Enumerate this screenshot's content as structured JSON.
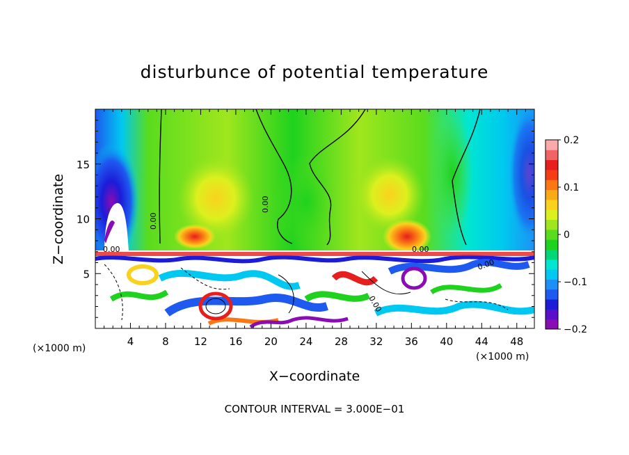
{
  "chart_data": {
    "type": "heatmap",
    "title": "disturbunce of potential temperature",
    "xlabel": "X−coordinate",
    "ylabel": "Z−coordinate",
    "x_unit_left": "(×1000 m)",
    "x_unit_right": "(×1000 m)",
    "footer": "CONTOUR INTERVAL = 3.000E−01",
    "xlim": [
      0,
      50
    ],
    "ylim": [
      0,
      20
    ],
    "x_ticks": [
      4,
      8,
      12,
      16,
      20,
      24,
      28,
      32,
      36,
      40,
      44,
      48
    ],
    "y_ticks": [
      5,
      10,
      15
    ],
    "colorbar": {
      "min": -0.2,
      "max": 0.2,
      "ticks": [
        0.2,
        0.1,
        0,
        -0.1,
        -0.2
      ],
      "tick_labels": [
        "0.2",
        "0.1",
        "0",
        "−0.1",
        "−0.2"
      ],
      "colors": [
        "#8a0cb4",
        "#5a0fc8",
        "#1c1cd8",
        "#1e5af0",
        "#1e90f5",
        "#00c8f0",
        "#00e6d2",
        "#00d878",
        "#1ed21e",
        "#5adc1e",
        "#a0e61e",
        "#dcf01e",
        "#fad21e",
        "#faaa14",
        "#fa7814",
        "#f53c14",
        "#e61e1e",
        "#f06464",
        "#faaaaa"
      ]
    },
    "contour_labels": [
      "0.00",
      "0.00",
      "0.00",
      "0.00",
      "0.00",
      "0.00"
    ]
  }
}
